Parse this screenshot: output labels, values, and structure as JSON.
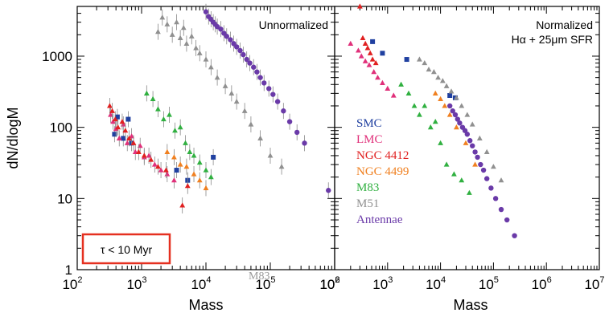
{
  "chart_data": [
    {
      "type": "scatter",
      "title": "Unnormalized",
      "xlabel": "Mass",
      "ylabel": "dN/dlogM",
      "xscale": "log",
      "yscale": "log",
      "xlim": [
        100,
        1000000
      ],
      "ylim": [
        1,
        5000
      ],
      "x_ticks": [
        {
          "base": "10",
          "exp": "2"
        },
        {
          "base": "10",
          "exp": "3"
        },
        {
          "base": "10",
          "exp": "4"
        },
        {
          "base": "10",
          "exp": "5"
        },
        {
          "base": "10",
          "exp": "6"
        }
      ],
      "y_ticks": [
        "1",
        "10",
        "100",
        "1000"
      ],
      "annotation_box": "τ < 10 Myr",
      "faint_label": "M83",
      "series": [
        {
          "name": "SMC",
          "color": "#2040a0",
          "marker": "square",
          "x": [
            380,
            420,
            520,
            620,
            700,
            3500,
            5200,
            13000
          ],
          "y": [
            80,
            140,
            70,
            130,
            60,
            25,
            18,
            38
          ]
        },
        {
          "name": "LMC",
          "color": "#e0307a",
          "marker": "triangle",
          "x": [
            330,
            360,
            400,
            450,
            520,
            600,
            700,
            800,
            950,
            1100,
            1300,
            1600,
            2000,
            2500,
            3200
          ],
          "y": [
            150,
            120,
            95,
            70,
            110,
            60,
            75,
            45,
            55,
            38,
            40,
            30,
            25,
            22,
            18
          ]
        },
        {
          "name": "NGC 4412",
          "color": "#e02020",
          "marker": "triangle",
          "x": [
            320,
            350,
            390,
            430,
            500,
            560,
            640,
            750,
            900,
            1100,
            1400,
            1800,
            2400,
            4300,
            5200
          ],
          "y": [
            200,
            170,
            130,
            100,
            120,
            90,
            70,
            60,
            45,
            40,
            35,
            28,
            25,
            8,
            15
          ]
        },
        {
          "name": "NGC 4499",
          "color": "#f08020",
          "marker": "triangle",
          "x": [
            2500,
            3200,
            4000,
            5000,
            6500,
            8000,
            10000
          ],
          "y": [
            45,
            38,
            30,
            28,
            22,
            18,
            14
          ]
        },
        {
          "name": "M83",
          "color": "#30b040",
          "marker": "triangle",
          "x": [
            1200,
            1500,
            1800,
            2200,
            2700,
            3300,
            4000,
            4800,
            5600,
            6500,
            8000,
            10000,
            12000
          ],
          "y": [
            300,
            250,
            180,
            130,
            150,
            90,
            100,
            60,
            45,
            40,
            32,
            25,
            20
          ]
        },
        {
          "name": "M51",
          "color": "#909090",
          "marker": "triangle",
          "x": [
            1800,
            2100,
            2500,
            3000,
            3500,
            4000,
            4500,
            5000,
            6000,
            7000,
            8000,
            10000,
            12000,
            15000,
            20000,
            25000,
            30000,
            40000,
            50000,
            70000,
            100000,
            150000
          ],
          "y": [
            2200,
            3500,
            2800,
            2000,
            3000,
            1800,
            2500,
            1500,
            1900,
            1300,
            1100,
            900,
            700,
            500,
            380,
            300,
            230,
            170,
            110,
            70,
            40,
            28
          ]
        },
        {
          "name": "Antennae",
          "color": "#6a3aa8",
          "marker": "circle",
          "x": [
            10000,
            11000,
            12000,
            13000,
            14000,
            15000,
            17000,
            19000,
            21000,
            24000,
            27000,
            30000,
            34000,
            38000,
            43000,
            48000,
            55000,
            62000,
            70000,
            80000,
            95000,
            110000,
            130000,
            160000,
            200000,
            260000,
            340000,
            800000
          ],
          "y": [
            4200,
            3600,
            3300,
            3000,
            2800,
            2600,
            2400,
            2100,
            1900,
            1700,
            1500,
            1350,
            1200,
            1050,
            900,
            800,
            700,
            600,
            500,
            420,
            350,
            290,
            230,
            170,
            120,
            85,
            60,
            13
          ]
        }
      ]
    },
    {
      "type": "scatter",
      "title": "Normalized",
      "subtitle": "Hα + 25μm SFR",
      "xlabel": "Mass",
      "xscale": "log",
      "yscale": "log",
      "xlim": [
        100,
        10000000
      ],
      "ylim": [
        1,
        5000
      ],
      "x_ticks": [
        {
          "base": "10",
          "exp": "2"
        },
        {
          "base": "10",
          "exp": "3"
        },
        {
          "base": "10",
          "exp": "4"
        },
        {
          "base": "10",
          "exp": "5"
        },
        {
          "base": "10",
          "exp": "6"
        },
        {
          "base": "10",
          "exp": "7"
        }
      ],
      "series": [
        {
          "name": "SMC",
          "color": "#2040a0",
          "marker": "square",
          "x": [
            520,
            800,
            2300,
            15000,
            19000
          ],
          "y": [
            1600,
            1100,
            900,
            280,
            260
          ]
        },
        {
          "name": "LMC",
          "color": "#e0307a",
          "marker": "triangle",
          "x": [
            200,
            280,
            320,
            380,
            450,
            550,
            650,
            800,
            1000,
            1300
          ],
          "y": [
            1500,
            1200,
            1000,
            850,
            750,
            600,
            500,
            420,
            350,
            280
          ]
        },
        {
          "name": "NGC 4412",
          "color": "#e02020",
          "marker": "triangle",
          "x": [
            300,
            340,
            380,
            420,
            470,
            520,
            600
          ],
          "y": [
            5000,
            1800,
            1500,
            1300,
            1100,
            900,
            800
          ]
        },
        {
          "name": "NGC 4499",
          "color": "#f08020",
          "marker": "triangle",
          "x": [
            8000,
            10000,
            12000,
            15000,
            20000,
            30000,
            45000
          ],
          "y": [
            300,
            250,
            200,
            150,
            100,
            60,
            30
          ]
        },
        {
          "name": "M83",
          "color": "#30b040",
          "marker": "triangle",
          "x": [
            1800,
            2500,
            3200,
            4000,
            5000,
            6500,
            8000,
            10000,
            13000,
            18000,
            25000,
            35000
          ],
          "y": [
            400,
            300,
            200,
            150,
            200,
            100,
            120,
            60,
            30,
            22,
            18,
            12
          ]
        },
        {
          "name": "M51",
          "color": "#909090",
          "marker": "triangle",
          "x": [
            4000,
            5000,
            6000,
            7500,
            9000,
            11000,
            13000,
            16000,
            20000,
            25000,
            32000,
            40000,
            55000,
            75000,
            100000,
            140000
          ],
          "y": [
            900,
            800,
            650,
            600,
            500,
            450,
            380,
            320,
            260,
            200,
            150,
            110,
            70,
            45,
            28,
            18
          ]
        },
        {
          "name": "Antennae",
          "color": "#6a3aa8",
          "marker": "circle",
          "x": [
            15000,
            17000,
            19000,
            21000,
            23000,
            26000,
            29000,
            32000,
            36000,
            40000,
            45000,
            50000,
            57000,
            65000,
            75000,
            90000,
            110000,
            140000,
            180000,
            250000
          ],
          "y": [
            200,
            170,
            150,
            130,
            115,
            100,
            90,
            80,
            65,
            55,
            45,
            38,
            30,
            25,
            19,
            14,
            10,
            7,
            5,
            3
          ]
        }
      ]
    }
  ],
  "legend": [
    {
      "label": "SMC",
      "color": "#2040a0"
    },
    {
      "label": "LMC",
      "color": "#e0307a"
    },
    {
      "label": "NGC 4412",
      "color": "#e02020"
    },
    {
      "label": "NGC 4499",
      "color": "#f08020"
    },
    {
      "label": "M83",
      "color": "#30b040"
    },
    {
      "label": "M51",
      "color": "#909090"
    },
    {
      "label": "Antennae",
      "color": "#6a3aa8"
    }
  ]
}
